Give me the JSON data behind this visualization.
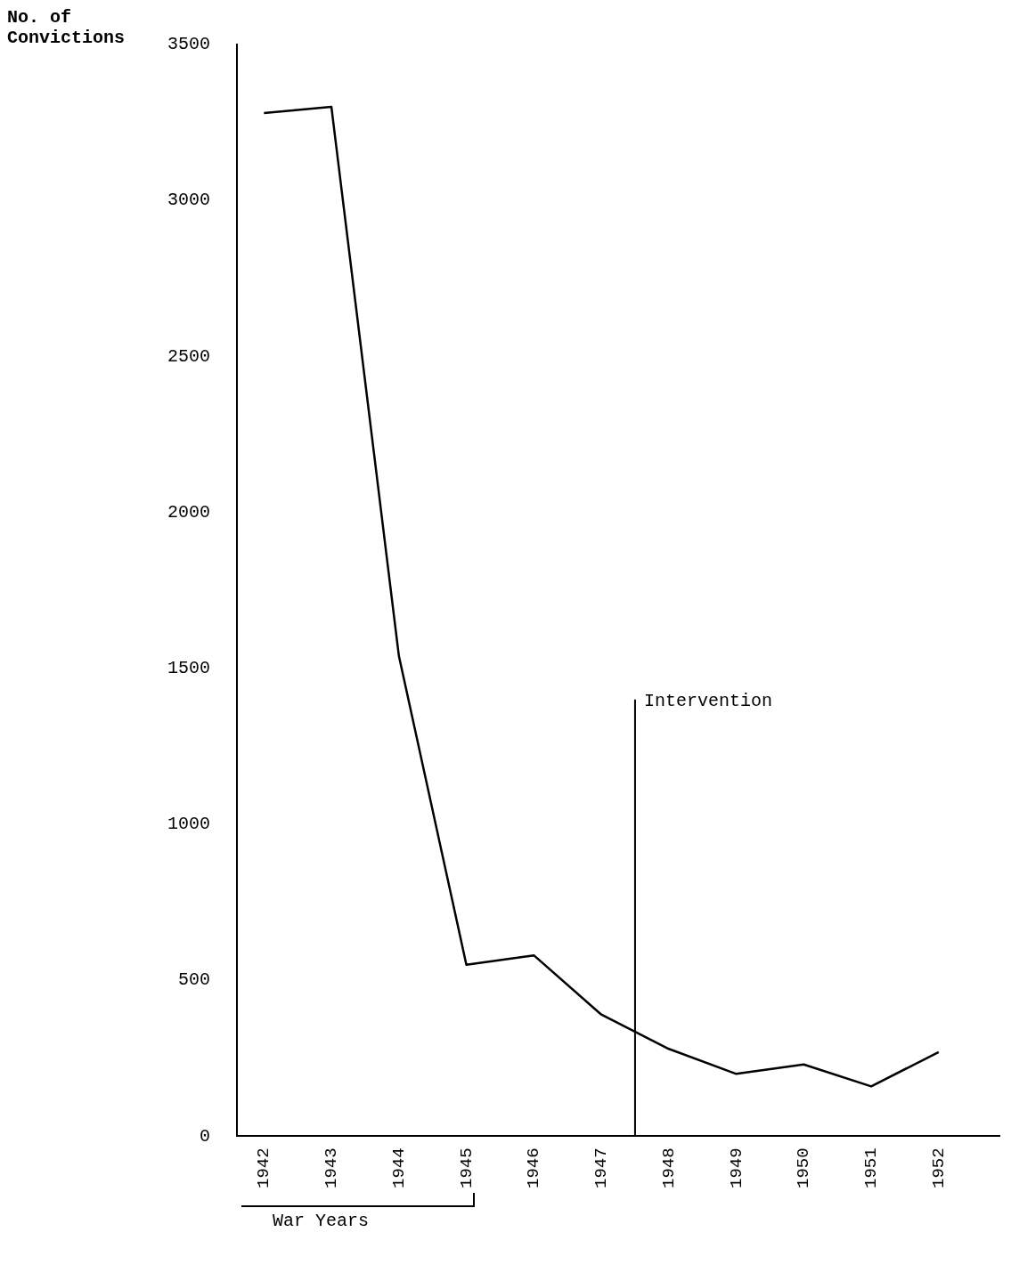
{
  "chart_data": {
    "type": "line",
    "ylabel": "No. of Convictions",
    "x": [
      1942,
      1943,
      1944,
      1945,
      1946,
      1947,
      1948,
      1949,
      1950,
      1951,
      1952
    ],
    "series": [
      {
        "color": "#000000",
        "values": [
          3280,
          3300,
          1540,
          550,
          580,
          390,
          280,
          200,
          230,
          160,
          270
        ]
      }
    ],
    "xlim": [
      1941.6,
      1952.9
    ],
    "xticks": [
      1942,
      1943,
      1944,
      1945,
      1946,
      1947,
      1948,
      1949,
      1950,
      1951,
      1952
    ],
    "ylim": [
      0,
      3500
    ],
    "yticks": [
      0,
      500,
      1000,
      1500,
      2000,
      2500,
      3000,
      3500
    ],
    "ref_lines": [
      {
        "axis": "x",
        "value": 1947.5,
        "label": "Intervention",
        "color": "#000000"
      }
    ],
    "annotations": [
      "War Years"
    ],
    "grid": false,
    "legend": false,
    "marker": "none",
    "line_style": "solid"
  }
}
